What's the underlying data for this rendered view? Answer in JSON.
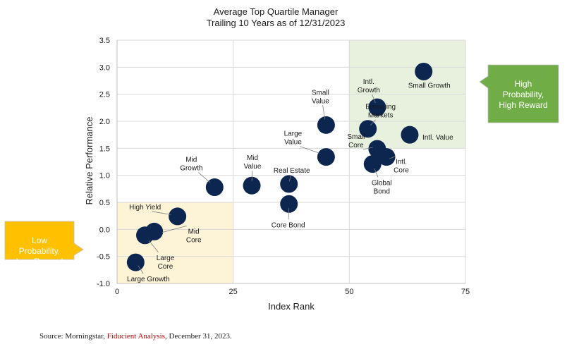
{
  "chart_data": {
    "type": "scatter",
    "title": "Average Top Quartile Manager",
    "subtitle": "Trailing 10 Years as of 12/31/2023",
    "xlabel": "Index Rank",
    "ylabel": "Relative Performance",
    "xlim": [
      0,
      75
    ],
    "ylim": [
      -1.0,
      3.5
    ],
    "x_ticks": [
      "0",
      "25",
      "50",
      "75"
    ],
    "y_ticks": [
      "-1.0",
      "-0.5",
      "0.0",
      "0.5",
      "1.0",
      "1.5",
      "2.0",
      "2.5",
      "3.0",
      "3.5"
    ],
    "grid": true,
    "points": [
      {
        "label": "Small Growth",
        "x": 66,
        "y": 2.92
      },
      {
        "label": "Intl. Growth",
        "x": 56,
        "y": 2.26
      },
      {
        "label": "Small Value",
        "x": 45,
        "y": 1.93
      },
      {
        "label": "Emerging Markets",
        "x": 54,
        "y": 1.86
      },
      {
        "label": "Intl. Value",
        "x": 63,
        "y": 1.75
      },
      {
        "label": "Small Core",
        "x": 56,
        "y": 1.49
      },
      {
        "label": "Large Value",
        "x": 45,
        "y": 1.34
      },
      {
        "label": "Intl. Core",
        "x": 58,
        "y": 1.34
      },
      {
        "label": "Global Bond",
        "x": 55,
        "y": 1.21
      },
      {
        "label": "Mid Growth",
        "x": 21,
        "y": 0.78
      },
      {
        "label": "Mid Value",
        "x": 29,
        "y": 0.81
      },
      {
        "label": "Real Estate",
        "x": 37,
        "y": 0.84
      },
      {
        "label": "Core Bond",
        "x": 37,
        "y": 0.47
      },
      {
        "label": "High Yield",
        "x": 13,
        "y": 0.24
      },
      {
        "label": "Mid Core",
        "x": 8,
        "y": -0.04
      },
      {
        "label": "Large Core",
        "x": 6,
        "y": -0.11
      },
      {
        "label": "Large Growth",
        "x": 4,
        "y": -0.61
      }
    ],
    "regions": [
      {
        "name": "high",
        "x": [
          50,
          75
        ],
        "y": [
          1.5,
          3.5
        ],
        "color": "#e8f1de"
      },
      {
        "name": "low",
        "x": [
          0,
          25
        ],
        "y": [
          -1.0,
          0.5
        ],
        "color": "#fdf3d7"
      }
    ],
    "marker_color": "#0c2650"
  },
  "callouts": {
    "high": {
      "text": [
        "High",
        "Probability,",
        "High Reward"
      ],
      "color": "#70ad47"
    },
    "low": {
      "text": [
        "Low",
        "Probability,",
        "Low Reward"
      ],
      "color": "#ffc000"
    }
  },
  "source": {
    "prefix": "Source: Morningstar, ",
    "highlight": "Fiducient Analysis",
    "suffix": ", December 31, 2023."
  }
}
